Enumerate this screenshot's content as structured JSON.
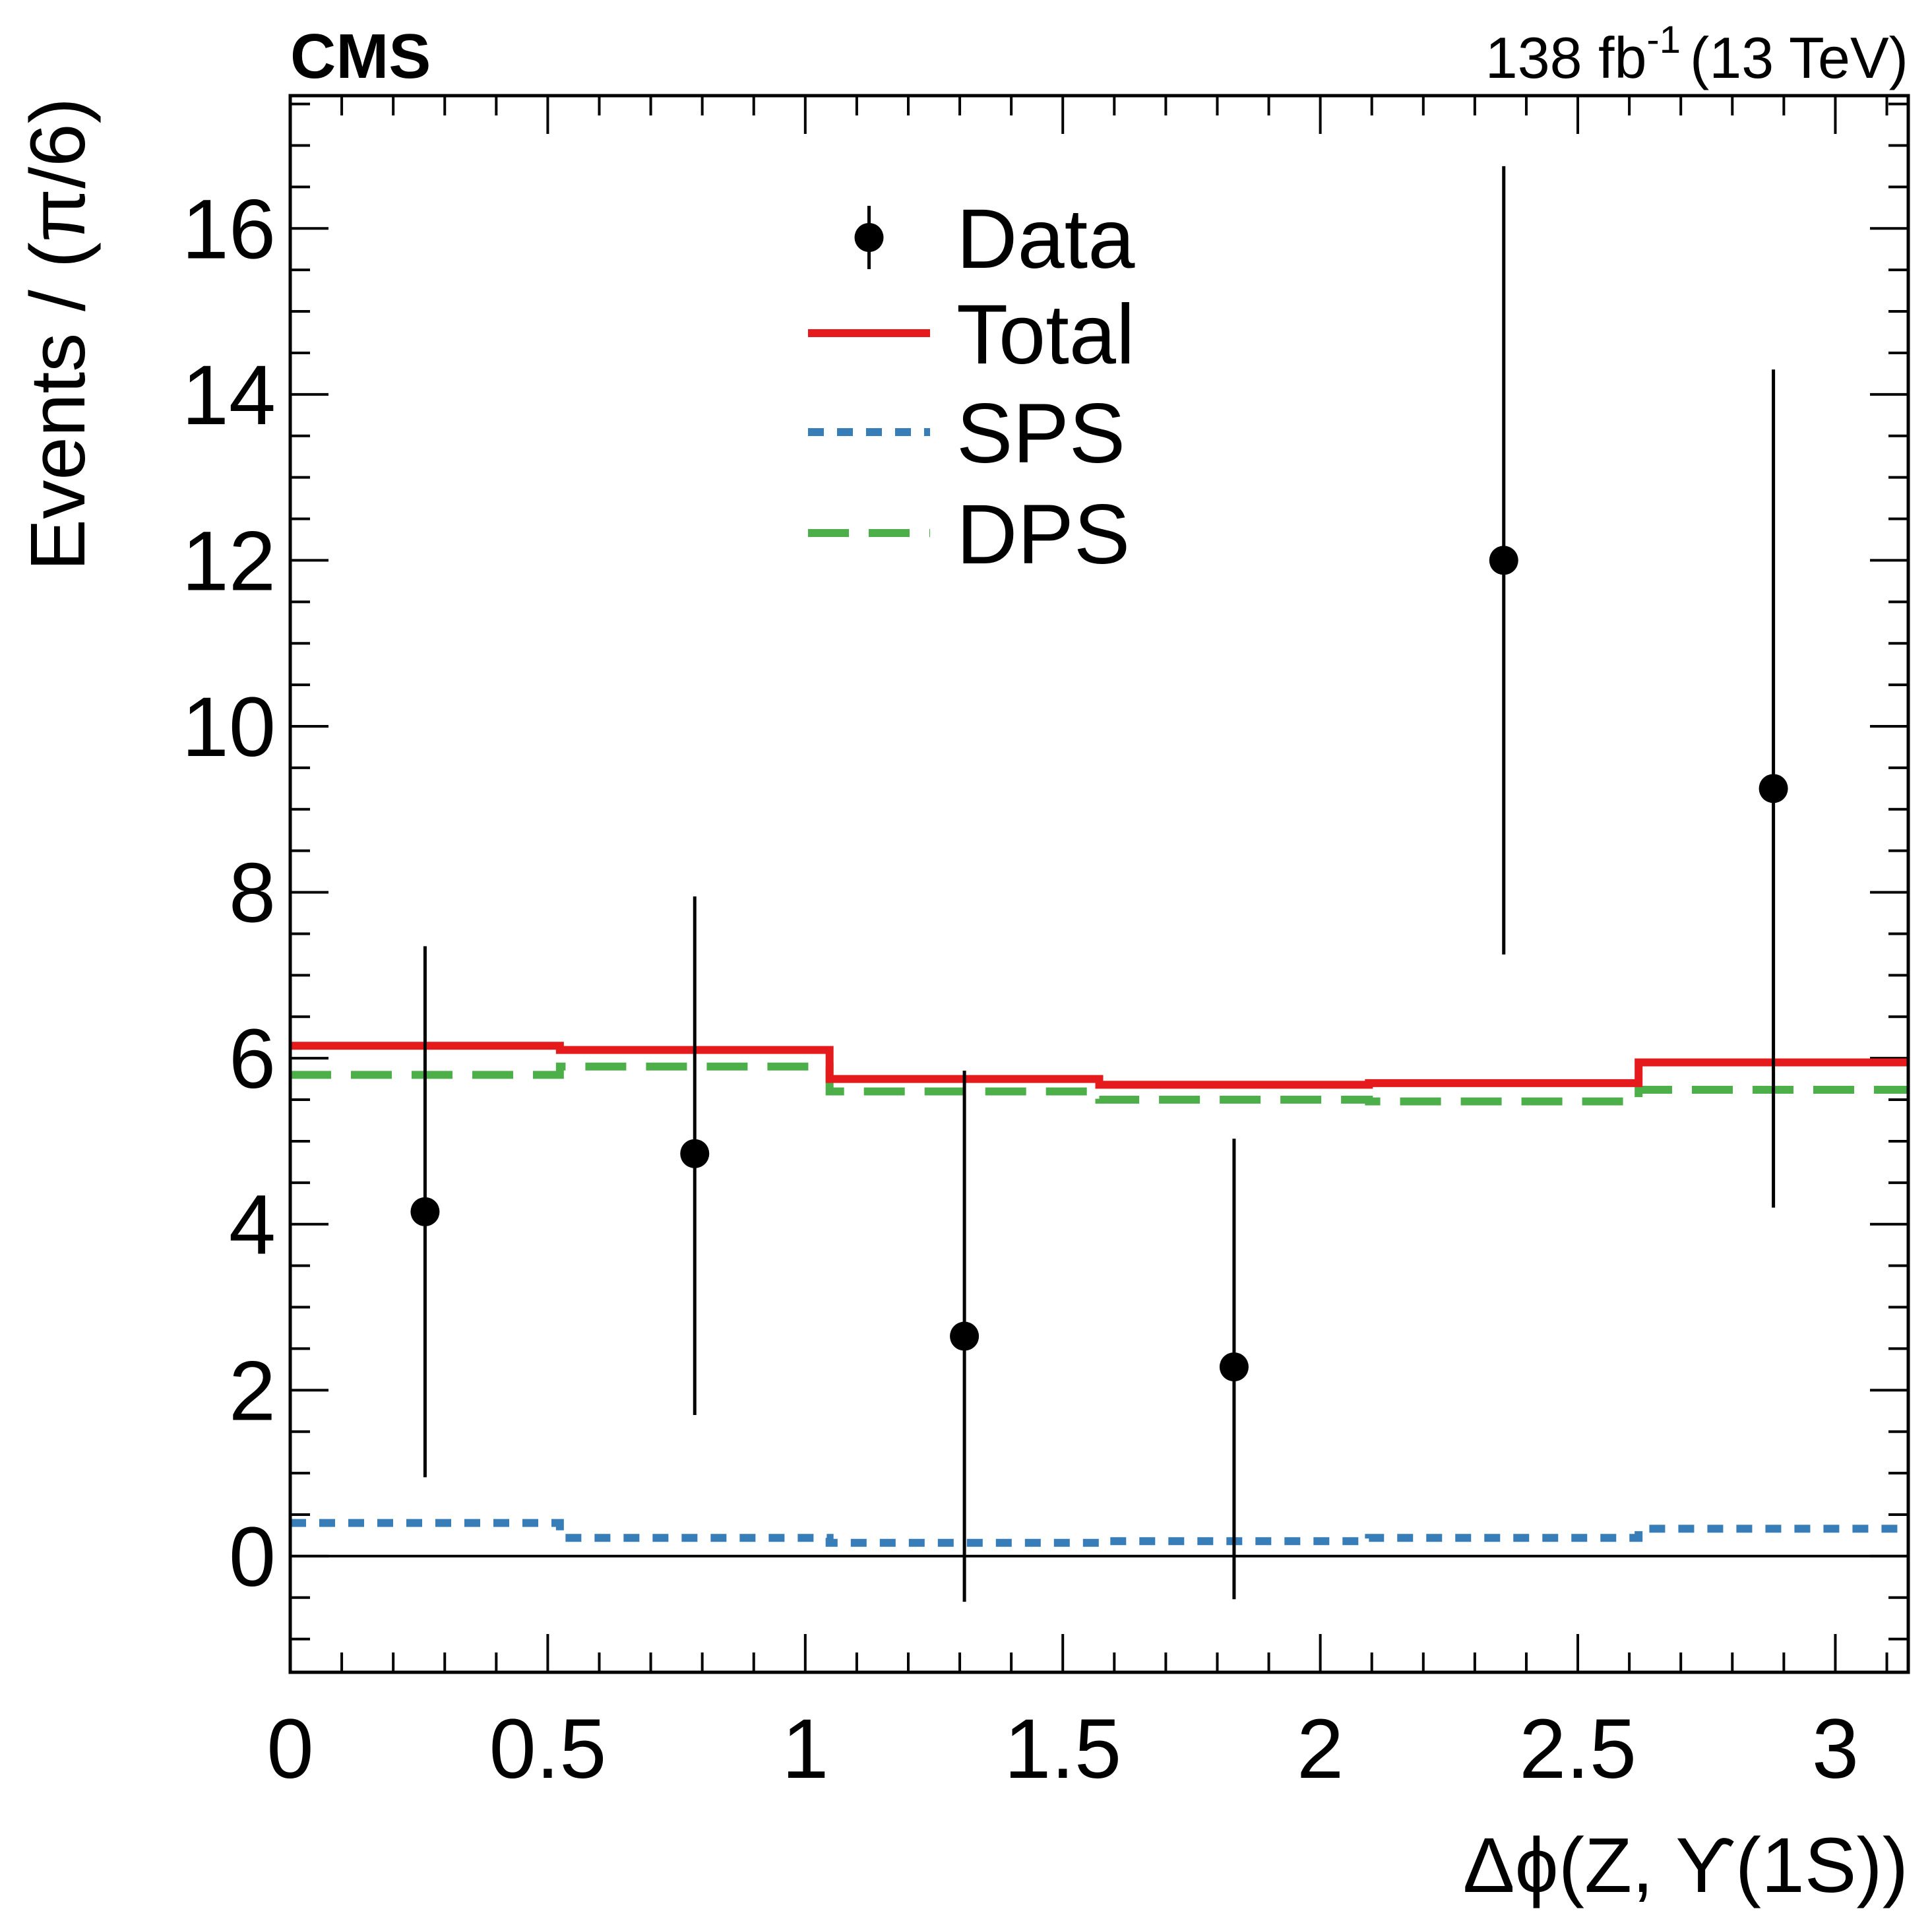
{
  "header": {
    "experiment": "CMS",
    "lumi_main": "138 fb",
    "lumi_exp": "-1",
    "lumi_tail": "(13 TeV)"
  },
  "chart_data": {
    "type": "step-histogram-with-points",
    "xlabel": "Δϕ(Z, ϒ(1S))",
    "ylabel": "Events / (π/6)",
    "xlim": [
      0,
      3.14159
    ],
    "ylim": [
      -1.4,
      17.6
    ],
    "x_major_ticks": [
      0,
      0.5,
      1,
      1.5,
      2,
      2.5,
      3
    ],
    "x_tick_labels": [
      "0",
      "0.5",
      "1",
      "1.5",
      "2",
      "2.5",
      "3"
    ],
    "x_minor_step": 0.1,
    "y_major_ticks": [
      0,
      2,
      4,
      6,
      8,
      10,
      12,
      14,
      16
    ],
    "y_tick_labels": [
      "0",
      "2",
      "4",
      "6",
      "8",
      "10",
      "12",
      "14",
      "16"
    ],
    "y_minor_step": 0.5,
    "bin_edges": [
      0,
      0.5236,
      1.0472,
      1.5708,
      2.0944,
      2.618,
      3.14159
    ],
    "zero_line": true,
    "series": [
      {
        "name": "Total",
        "style": "solid",
        "color": "#e41a1c",
        "values": [
          6.15,
          6.1,
          5.75,
          5.68,
          5.7,
          5.95
        ]
      },
      {
        "name": "SPS",
        "style": "dotted",
        "color": "#377eb8",
        "values": [
          0.4,
          0.22,
          0.16,
          0.18,
          0.22,
          0.33
        ]
      },
      {
        "name": "DPS",
        "style": "dashed",
        "color": "#4daf4a",
        "values": [
          5.8,
          5.9,
          5.6,
          5.5,
          5.48,
          5.62
        ]
      }
    ],
    "data_points": {
      "name": "Data",
      "x": [
        0.2618,
        0.7854,
        1.309,
        1.8326,
        2.3562,
        2.8798
      ],
      "y": [
        4.15,
        4.85,
        2.65,
        2.28,
        12.0,
        9.25
      ],
      "err_low": [
        3.2,
        3.15,
        3.2,
        2.8,
        4.75,
        5.05
      ],
      "err_high": [
        3.2,
        3.1,
        3.2,
        2.75,
        4.75,
        5.05
      ]
    },
    "legend": [
      {
        "label": "Data",
        "kind": "marker"
      },
      {
        "label": "Total",
        "kind": "solid"
      },
      {
        "label": "SPS",
        "kind": "dotted"
      },
      {
        "label": "DPS",
        "kind": "dashed"
      }
    ],
    "legend_position": "top-center"
  }
}
